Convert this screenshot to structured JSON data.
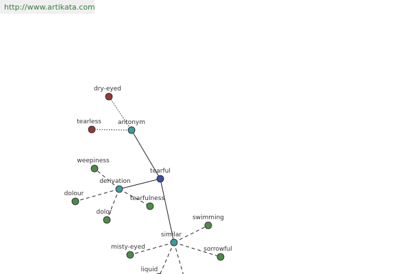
{
  "header": {
    "url": "http://www.artikata.com"
  },
  "nodes": [
    {
      "label": "tearful"
    },
    {
      "label": "antonym"
    },
    {
      "label": "dry-eyed"
    },
    {
      "label": "tearless"
    },
    {
      "label": "derivation"
    },
    {
      "label": "weepiness"
    },
    {
      "label": "dolour"
    },
    {
      "label": "dolor"
    },
    {
      "label": "tearfulness"
    },
    {
      "label": "similar"
    },
    {
      "label": "swimming"
    },
    {
      "label": "sorrowful"
    },
    {
      "label": "misty-eyed"
    },
    {
      "label": "liquid"
    }
  ]
}
